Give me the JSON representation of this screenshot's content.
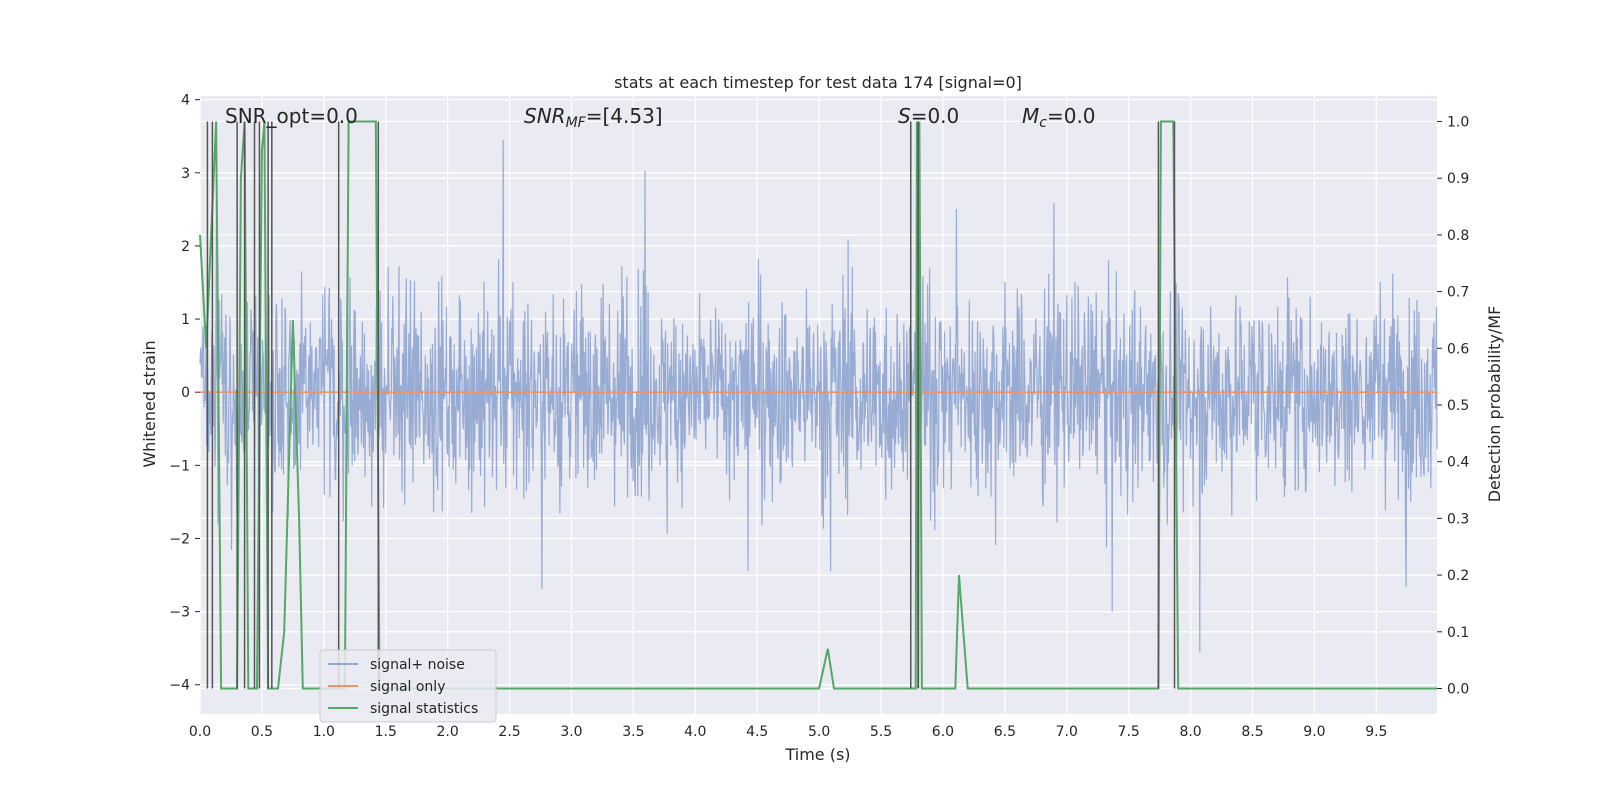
{
  "chart_data": {
    "type": "line",
    "title": "stats at each timestep for test data 174 [signal=0]",
    "xlabel": "Time (s)",
    "ylabel_left": "Whitened strain",
    "ylabel_right": "Detection probability/MF",
    "xlim": [
      0.0,
      9.99
    ],
    "ylim_left": [
      -4.4,
      4.05
    ],
    "ylim_right": [
      -0.045,
      1.045
    ],
    "x_ticks": [
      "0.0",
      "0.5",
      "1.0",
      "1.5",
      "2.0",
      "2.5",
      "3.0",
      "3.5",
      "4.0",
      "4.5",
      "5.0",
      "5.5",
      "6.0",
      "6.5",
      "7.0",
      "7.5",
      "8.0",
      "8.5",
      "9.0",
      "9.5"
    ],
    "y_left_ticks": [
      "4",
      "3",
      "2",
      "1",
      "0",
      "−1",
      "−2",
      "−3",
      "−4"
    ],
    "y_right_ticks": [
      "1.0",
      "0.9",
      "0.8",
      "0.7",
      "0.6",
      "0.5",
      "0.4",
      "0.3",
      "0.2",
      "0.1",
      "0.0"
    ],
    "grid": true,
    "legend_position": "lower-left",
    "annotations": {
      "snr_opt": "SNR_opt=0.0",
      "snr_mf_main": "SNR",
      "snr_mf_sub": "MF",
      "snr_mf_value": "=[4.53]",
      "s_main": "S",
      "s_value": "=0.0",
      "mc_main": "M",
      "mc_sub": "c",
      "mc_value": "=0.0"
    },
    "series": [
      {
        "name": "signal+ noise",
        "color": "#92a8d1",
        "description_axis": "left",
        "noise_envelope": {
          "typical_abs": 1.6,
          "peak_abs": 3.6
        }
      },
      {
        "name": "signal only",
        "color": "#e8956e",
        "axis": "left",
        "constant_value": 0.0
      },
      {
        "name": "signal statistics",
        "color": "#55a868",
        "axis": "right",
        "x": [
          0.0,
          0.05,
          0.1,
          0.13,
          0.17,
          0.2,
          0.25,
          0.3,
          0.33,
          0.36,
          0.39,
          0.42,
          0.46,
          0.5,
          0.52,
          0.55,
          0.58,
          0.6,
          0.63,
          0.68,
          0.75,
          0.8,
          0.83,
          0.87,
          0.9,
          1.0,
          1.09,
          1.12,
          1.15,
          1.17,
          1.2,
          1.25,
          1.3,
          1.35,
          1.42,
          1.45,
          1.5,
          1.6,
          2.0,
          3.0,
          4.0,
          5.0,
          5.07,
          5.12,
          5.16,
          5.2,
          5.5,
          5.74,
          5.78,
          5.79,
          5.8,
          5.81,
          5.83,
          5.86,
          5.9,
          6.1,
          6.13,
          6.2,
          6.27,
          6.3,
          7.0,
          7.74,
          7.76,
          7.8,
          7.86,
          7.9,
          7.95,
          8.5,
          9.0,
          9.99
        ],
        "values": [
          0.8,
          0.6,
          0.85,
          1.0,
          0.0,
          0.0,
          0.0,
          0.0,
          0.9,
          1.0,
          0.0,
          0.0,
          0.0,
          0.95,
          1.0,
          0.0,
          0.0,
          0.0,
          0.0,
          0.1,
          0.65,
          0.3,
          0.0,
          0.0,
          0.0,
          0.0,
          0.0,
          0.0,
          0.0,
          0.0,
          1.0,
          1.0,
          1.0,
          1.0,
          1.0,
          0.0,
          0.0,
          0.0,
          0.0,
          0.0,
          0.0,
          0.0,
          0.07,
          0.0,
          0.0,
          0.0,
          0.0,
          0.0,
          0.0,
          1.0,
          0.0,
          1.0,
          0.0,
          0.0,
          0.0,
          0.0,
          0.2,
          0.0,
          0.0,
          0.0,
          0.0,
          0.0,
          1.0,
          1.0,
          1.0,
          0.0,
          0.0,
          0.0,
          0.0,
          0.0
        ]
      }
    ],
    "vertical_markers_right_axis": {
      "color": "#555555",
      "y_range": [
        0.0,
        1.0
      ],
      "x": [
        0.06,
        0.1,
        0.3,
        0.36,
        0.44,
        0.48,
        0.55,
        0.58,
        1.12,
        1.44,
        5.74,
        5.8,
        7.74,
        7.87
      ]
    }
  }
}
